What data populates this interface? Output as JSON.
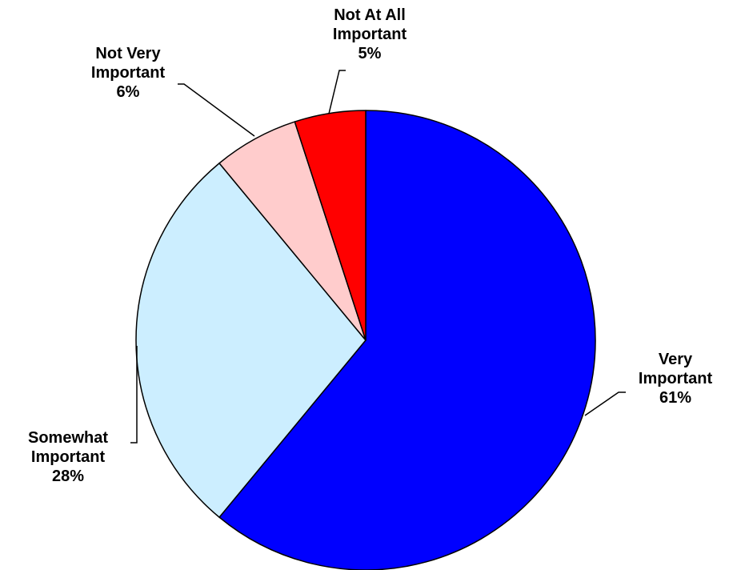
{
  "chart_data": {
    "type": "pie",
    "slices": [
      {
        "label": "Very Important",
        "label_lines": [
          "Very",
          "Important"
        ],
        "value": 61,
        "value_label": "61%",
        "color": "#0000ff"
      },
      {
        "label": "Somewhat Important",
        "label_lines": [
          "Somewhat",
          "Important"
        ],
        "value": 28,
        "value_label": "28%",
        "color": "#cceeff"
      },
      {
        "label": "Not Very Important",
        "label_lines": [
          "Not Very",
          "Important"
        ],
        "value": 6,
        "value_label": "6%",
        "color": "#ffcccc"
      },
      {
        "label": "Not At All Important",
        "label_lines": [
          "Not At All",
          "Important"
        ],
        "value": 5,
        "value_label": "5%",
        "color": "#ff0000"
      }
    ],
    "start": "12 o'clock",
    "direction": "clockwise",
    "legend": "none"
  }
}
